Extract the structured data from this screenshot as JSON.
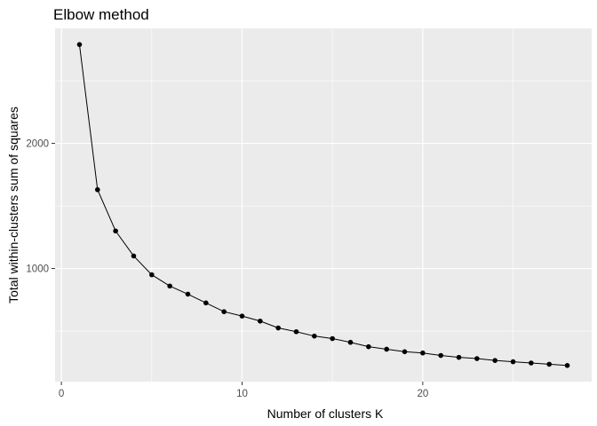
{
  "chart_data": {
    "type": "line",
    "title": "Elbow method",
    "xlabel": "Number of clusters K",
    "ylabel": "Total within-clusters sum of squares",
    "x": [
      1,
      2,
      3,
      4,
      5,
      6,
      7,
      8,
      9,
      10,
      11,
      12,
      13,
      14,
      15,
      16,
      17,
      18,
      19,
      20,
      21,
      22,
      23,
      24,
      25,
      26,
      27,
      28
    ],
    "series": [
      {
        "values": [
          2790,
          1630,
          1300,
          1100,
          950,
          860,
          795,
          725,
          655,
          620,
          580,
          525,
          495,
          460,
          440,
          410,
          375,
          355,
          335,
          325,
          305,
          290,
          280,
          265,
          255,
          245,
          235,
          225
        ]
      }
    ],
    "xlim": [
      -0.35,
      29.35
    ],
    "ylim": [
      96,
      2919
    ],
    "xticks": [
      0,
      10,
      20
    ],
    "xtick_labels": [
      "0",
      "10",
      "20"
    ],
    "yticks": [
      1000,
      2000
    ],
    "ytick_labels": [
      "1000",
      "2000"
    ],
    "grid": true,
    "legend": "none",
    "colors": {
      "panel_background": "#ebebeb",
      "grid_line": "#ffffff",
      "series_line": "#000000",
      "point": "#000000"
    }
  }
}
